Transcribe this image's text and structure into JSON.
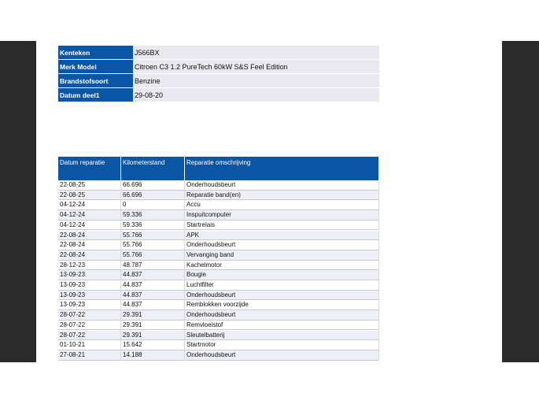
{
  "vehicle_info": {
    "rows": [
      [
        "Kenteken",
        "J566BX"
      ],
      [
        "Merk Model",
        "Citroen C3 1.2 PureTech 60kW S&S Feel Edition"
      ],
      [
        "Brandstofsoort",
        "Benzine"
      ],
      [
        "Datum deel1",
        "29-08-20"
      ]
    ]
  },
  "repairs": {
    "header": [
      "Datum reparatie",
      "Kilometerstand",
      "Reparatie omschrijving"
    ],
    "rows": [
      [
        "22-08-25",
        "66.696",
        "Onderhoudsbeurt"
      ],
      [
        "22-08-25",
        "66.696",
        "Reparatie band(en)"
      ],
      [
        "04-12-24",
        "0",
        "Accu"
      ],
      [
        "04-12-24",
        "59.336",
        "Inspuitcomputer"
      ],
      [
        "04-12-24",
        "59.336",
        "Startrelais"
      ],
      [
        "22-08-24",
        "55.766",
        "APK"
      ],
      [
        "22-08-24",
        "55.766",
        "Onderhoudsbeurt"
      ],
      [
        "22-08-24",
        "55.766",
        "Vervanging band"
      ],
      [
        "28-12-23",
        "48.787",
        "Kachelmotor"
      ],
      [
        "13-09-23",
        "44.837",
        "Bougie"
      ],
      [
        "13-09-23",
        "44.837",
        "Luchtfilter"
      ],
      [
        "13-09-23",
        "44.837",
        "Onderhoudsbeurt"
      ],
      [
        "13-09-23",
        "44.837",
        "Remblokken voorzijde"
      ],
      [
        "28-07-22",
        "29.391",
        "Onderhoudsbeurt"
      ],
      [
        "28-07-22",
        "29.391",
        "Remvloeistof"
      ],
      [
        "28-07-22",
        "29.391",
        "Sleutelbatterij"
      ],
      [
        "01-10-21",
        "15.642",
        "Startmotor"
      ],
      [
        "27-08-21",
        "14.188",
        "Onderhoudsbeurt"
      ]
    ]
  }
}
